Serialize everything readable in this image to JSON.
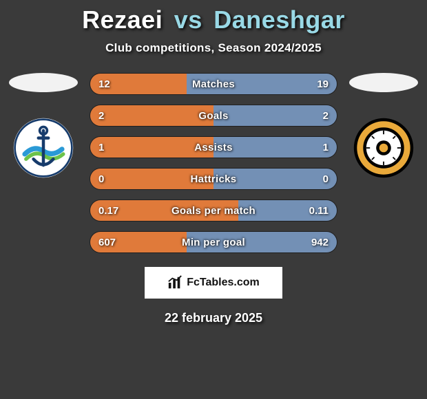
{
  "title": {
    "player1": "Rezaei",
    "vs": "vs",
    "player2": "Daneshgar",
    "player1_color": "#ffffff",
    "vs_color": "#99d9e6",
    "player2_color": "#99d9e6",
    "fontsize": 36
  },
  "subtitle": "Club competitions, Season 2024/2025",
  "colors": {
    "background": "#3a3a3a",
    "bar_left": "#e07a3a",
    "bar_right": "#7390b5",
    "bar_border": "rgba(0,0,0,0.45)",
    "text": "#ffffff"
  },
  "stats": [
    {
      "label": "Matches",
      "left_val": "12",
      "right_val": "19",
      "left_pct": 39,
      "right_pct": 61
    },
    {
      "label": "Goals",
      "left_val": "2",
      "right_val": "2",
      "left_pct": 50,
      "right_pct": 50
    },
    {
      "label": "Assists",
      "left_val": "1",
      "right_val": "1",
      "left_pct": 50,
      "right_pct": 50
    },
    {
      "label": "Hattricks",
      "left_val": "0",
      "right_val": "0",
      "left_pct": 50,
      "right_pct": 50
    },
    {
      "label": "Goals per match",
      "left_val": "0.17",
      "right_val": "0.11",
      "left_pct": 60,
      "right_pct": 40
    },
    {
      "label": "Min per goal",
      "left_val": "607",
      "right_val": "942",
      "left_pct": 39,
      "right_pct": 61
    }
  ],
  "bar_style": {
    "height": 32,
    "gap": 14,
    "radius": 16,
    "label_fontsize": 15,
    "value_fontsize": 15
  },
  "badges": {
    "left": {
      "bg": "#ffffff",
      "ring": "#163b6b",
      "accent1": "#2a9ad6",
      "accent2": "#6cc24a",
      "semantic": "anchor-club-crest"
    },
    "right": {
      "bg": "#000000",
      "ring_outer": "#e9a93a",
      "ring_inner": "#ffffff",
      "semantic": "sun-club-crest"
    }
  },
  "footer": {
    "brand": "FcTables.com",
    "date": "22 february 2025"
  }
}
